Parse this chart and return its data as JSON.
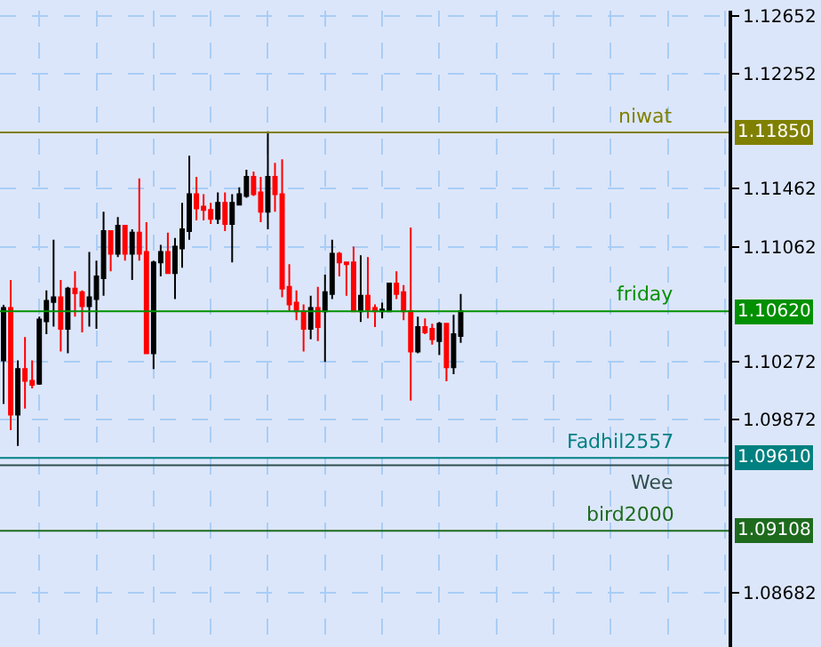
{
  "chart_data": {
    "type": "candlestick",
    "categories": [
      null,
      null,
      null,
      null,
      null,
      null,
      null,
      null,
      null,
      null,
      null,
      null,
      null,
      null,
      null,
      null,
      null,
      null,
      null,
      null,
      null,
      null,
      null,
      null,
      null,
      null,
      null,
      null,
      null,
      null,
      null,
      null,
      null,
      null,
      null,
      null,
      null,
      null,
      null,
      null,
      null,
      null,
      null,
      null,
      null,
      null,
      null,
      null,
      null,
      null,
      null,
      null,
      null,
      null,
      null,
      null,
      null,
      null,
      null,
      null,
      null,
      null,
      null,
      null,
      null,
      null,
      null,
      null,
      null,
      null,
      null,
      null,
      null,
      null,
      null,
      null,
      null,
      null,
      null,
      null,
      null,
      null,
      null,
      null,
      null,
      null,
      null,
      null,
      null,
      null,
      null,
      null,
      null,
      null,
      null,
      null,
      null,
      null,
      null,
      null,
      null,
      null
    ],
    "ohlc": [
      [
        1.10282,
        1.10663,
        1.09981,
        1.10643
      ],
      [
        1.10643,
        1.10835,
        1.09801,
        1.09909
      ],
      [
        1.09909,
        1.10282,
        1.09692,
        1.10222
      ],
      [
        1.10222,
        1.10442,
        1.09949,
        1.10141
      ],
      [
        1.10141,
        1.10282,
        1.10089,
        1.10113
      ],
      [
        1.10121,
        1.10583,
        1.10113,
        1.10562
      ],
      [
        1.1055,
        1.10763,
        1.10462,
        1.10691
      ],
      [
        1.10683,
        1.11112,
        1.10514,
        1.10715
      ],
      [
        1.10715,
        1.10835,
        1.10342,
        1.10498
      ],
      [
        1.10498,
        1.10787,
        1.1033,
        1.10775
      ],
      [
        1.10775,
        1.10895,
        1.10583,
        1.10743
      ],
      [
        1.10751,
        1.10763,
        1.10474,
        1.10655
      ],
      [
        1.10655,
        1.11028,
        1.10514,
        1.10715
      ],
      [
        1.10703,
        1.10968,
        1.10498,
        1.10859
      ],
      [
        1.10847,
        1.11304,
        1.10727,
        1.11172
      ],
      [
        1.11172,
        1.11172,
        1.10895,
        1.11016
      ],
      [
        1.11016,
        1.11268,
        1.10992,
        1.11208
      ],
      [
        1.11208,
        1.11208,
        1.10968,
        1.11016
      ],
      [
        1.11016,
        1.11184,
        1.10835,
        1.1116
      ],
      [
        1.1116,
        1.11533,
        1.10968,
        1.11016
      ],
      [
        1.11028,
        1.11232,
        1.1033,
        1.1033
      ],
      [
        1.1033,
        1.10968,
        1.10222,
        1.10956
      ],
      [
        1.10956,
        1.11076,
        1.10859,
        1.11028
      ],
      [
        1.11028,
        1.1116,
        1.10883,
        1.10883
      ],
      [
        1.10883,
        1.11124,
        1.10703,
        1.11064
      ],
      [
        1.11052,
        1.11365,
        1.10919,
        1.11184
      ],
      [
        1.11172,
        1.11689,
        1.11112,
        1.11425
      ],
      [
        1.11425,
        1.11545,
        1.11244,
        1.11328
      ],
      [
        1.1134,
        1.11425,
        1.11244,
        1.11316
      ],
      [
        1.11316,
        1.11365,
        1.1122,
        1.11256
      ],
      [
        1.11256,
        1.11437,
        1.1122,
        1.11365
      ],
      [
        1.11365,
        1.11437,
        1.11172,
        1.1122
      ],
      [
        1.1122,
        1.11425,
        1.10956,
        1.11365
      ],
      [
        1.11353,
        1.11473,
        1.11353,
        1.11425
      ],
      [
        1.11413,
        1.11593,
        1.11401,
        1.11545
      ],
      [
        1.11545,
        1.11581,
        1.11413,
        1.11425
      ],
      [
        1.11437,
        1.11545,
        1.11232,
        1.11304
      ],
      [
        1.11304,
        1.11858,
        1.11184,
        1.11545
      ],
      [
        1.11545,
        1.11641,
        1.11304,
        1.11425
      ],
      [
        1.11425,
        1.11665,
        1.10715,
        1.10775
      ],
      [
        1.10787,
        1.10943,
        1.10619,
        1.10667
      ],
      [
        1.10679,
        1.10763,
        1.10558,
        1.10619
      ],
      [
        1.10619,
        1.10667,
        1.10342,
        1.10498
      ],
      [
        1.10498,
        1.10727,
        1.10426,
        1.10643
      ],
      [
        1.10643,
        1.10787,
        1.10414,
        1.1051
      ],
      [
        1.10619,
        1.10871,
        1.1027,
        1.10751
      ],
      [
        1.10739,
        1.11112,
        1.10703,
        1.11016
      ],
      [
        1.11016,
        1.11028,
        1.10859,
        1.10956
      ],
      [
        1.10956,
        1.10956,
        1.10727,
        1.10943
      ],
      [
        1.10956,
        1.11064,
        1.10619,
        1.10619
      ],
      [
        1.10619,
        1.11004,
        1.10546,
        1.10727
      ],
      [
        1.10727,
        1.10992,
        1.10571,
        1.10631
      ],
      [
        1.10643,
        1.10667,
        1.1051,
        1.10619
      ],
      [
        1.10619,
        1.10679,
        1.10571,
        1.10631
      ],
      [
        1.10619,
        1.10811,
        1.10619,
        1.10811
      ],
      [
        1.10811,
        1.10895,
        1.10703,
        1.10739
      ],
      [
        1.10751,
        1.10799,
        1.10558,
        1.10619
      ],
      [
        1.10619,
        1.11196,
        1.10005,
        1.10342
      ],
      [
        1.10342,
        1.10583,
        1.1033,
        1.1051
      ],
      [
        1.1051,
        1.10571,
        1.10462,
        1.10474
      ],
      [
        1.10498,
        1.10534,
        1.1039,
        1.10426
      ],
      [
        1.10414,
        1.10546,
        1.10318,
        1.10534
      ],
      [
        1.10534,
        1.10534,
        1.10137,
        1.10234
      ],
      [
        1.10234,
        1.10595,
        1.10186,
        1.10462
      ],
      [
        1.1045,
        1.10739,
        1.10402,
        1.10619
      ],
      null,
      null,
      null,
      null,
      null,
      null,
      null,
      null,
      null,
      null,
      null,
      null,
      null,
      null,
      null,
      null,
      null,
      null,
      null,
      null,
      null,
      null,
      null,
      null,
      null,
      null,
      null,
      null,
      null,
      null,
      null,
      null,
      null,
      null,
      null,
      null,
      null
    ],
    "colors": [
      "#000000",
      "#ff0000",
      "#000000",
      "#ff0000",
      "#ff0000",
      "#000000",
      "#000000",
      "#000000",
      "#ff0000",
      "#000000",
      "#ff0000",
      "#ff0000",
      "#000000",
      "#000000",
      "#000000",
      "#ff0000",
      "#000000",
      "#ff0000",
      "#000000",
      "#ff0000",
      "#ff0000",
      "#000000",
      "#000000",
      "#ff0000",
      "#000000",
      "#000000",
      "#000000",
      "#ff0000",
      "#ff0000",
      "#ff0000",
      "#000000",
      "#ff0000",
      "#000000",
      "#000000",
      "#000000",
      "#ff0000",
      "#ff0000",
      "#000000",
      "#ff0000",
      "#ff0000",
      "#ff0000",
      "#ff0000",
      "#ff0000",
      "#000000",
      "#ff0000",
      "#000000",
      "#000000",
      "#ff0000",
      "#ff0000",
      "#ff0000",
      "#000000",
      "#ff0000",
      "#ff0000",
      "#000000",
      "#000000",
      "#ff0000",
      "#ff0000",
      "#ff0000",
      "#000000",
      "#ff0000",
      "#ff0000",
      "#000000",
      "#ff0000",
      "#000000",
      "#000000",
      null,
      null,
      null,
      null,
      null,
      null,
      null,
      null,
      null,
      null,
      null,
      null,
      null,
      null,
      null,
      null,
      null,
      null,
      null,
      null,
      null,
      null,
      null,
      null,
      null,
      null,
      null,
      null,
      null,
      null,
      null,
      null,
      null,
      null,
      null,
      null,
      null
    ],
    "ylim": [
      1.08309,
      1.12688
    ],
    "yticks": [
      1.12652,
      1.12252,
      1.11462,
      1.11062,
      1.10272,
      1.09872,
      1.08682
    ],
    "grid": true,
    "annotations": [
      "1.11850",
      "1.10620",
      "1.09610",
      "1.09108"
    ],
    "ref_lines": [
      {
        "axis": "y",
        "value": 1.1185,
        "label": "niwat",
        "color": "#808000"
      },
      {
        "axis": "y",
        "value": 1.1062,
        "label": "friday",
        "color": "#009000"
      },
      {
        "axis": "y",
        "value": 1.0961,
        "label": "Fadhil2557",
        "color": "#008080"
      },
      {
        "axis": "y",
        "value": 1.0956,
        "label": "Wee",
        "color": "#2f4f4f"
      },
      {
        "axis": "y",
        "value": 1.09108,
        "label": "bird2000",
        "color": "#1e6b1e"
      }
    ]
  }
}
